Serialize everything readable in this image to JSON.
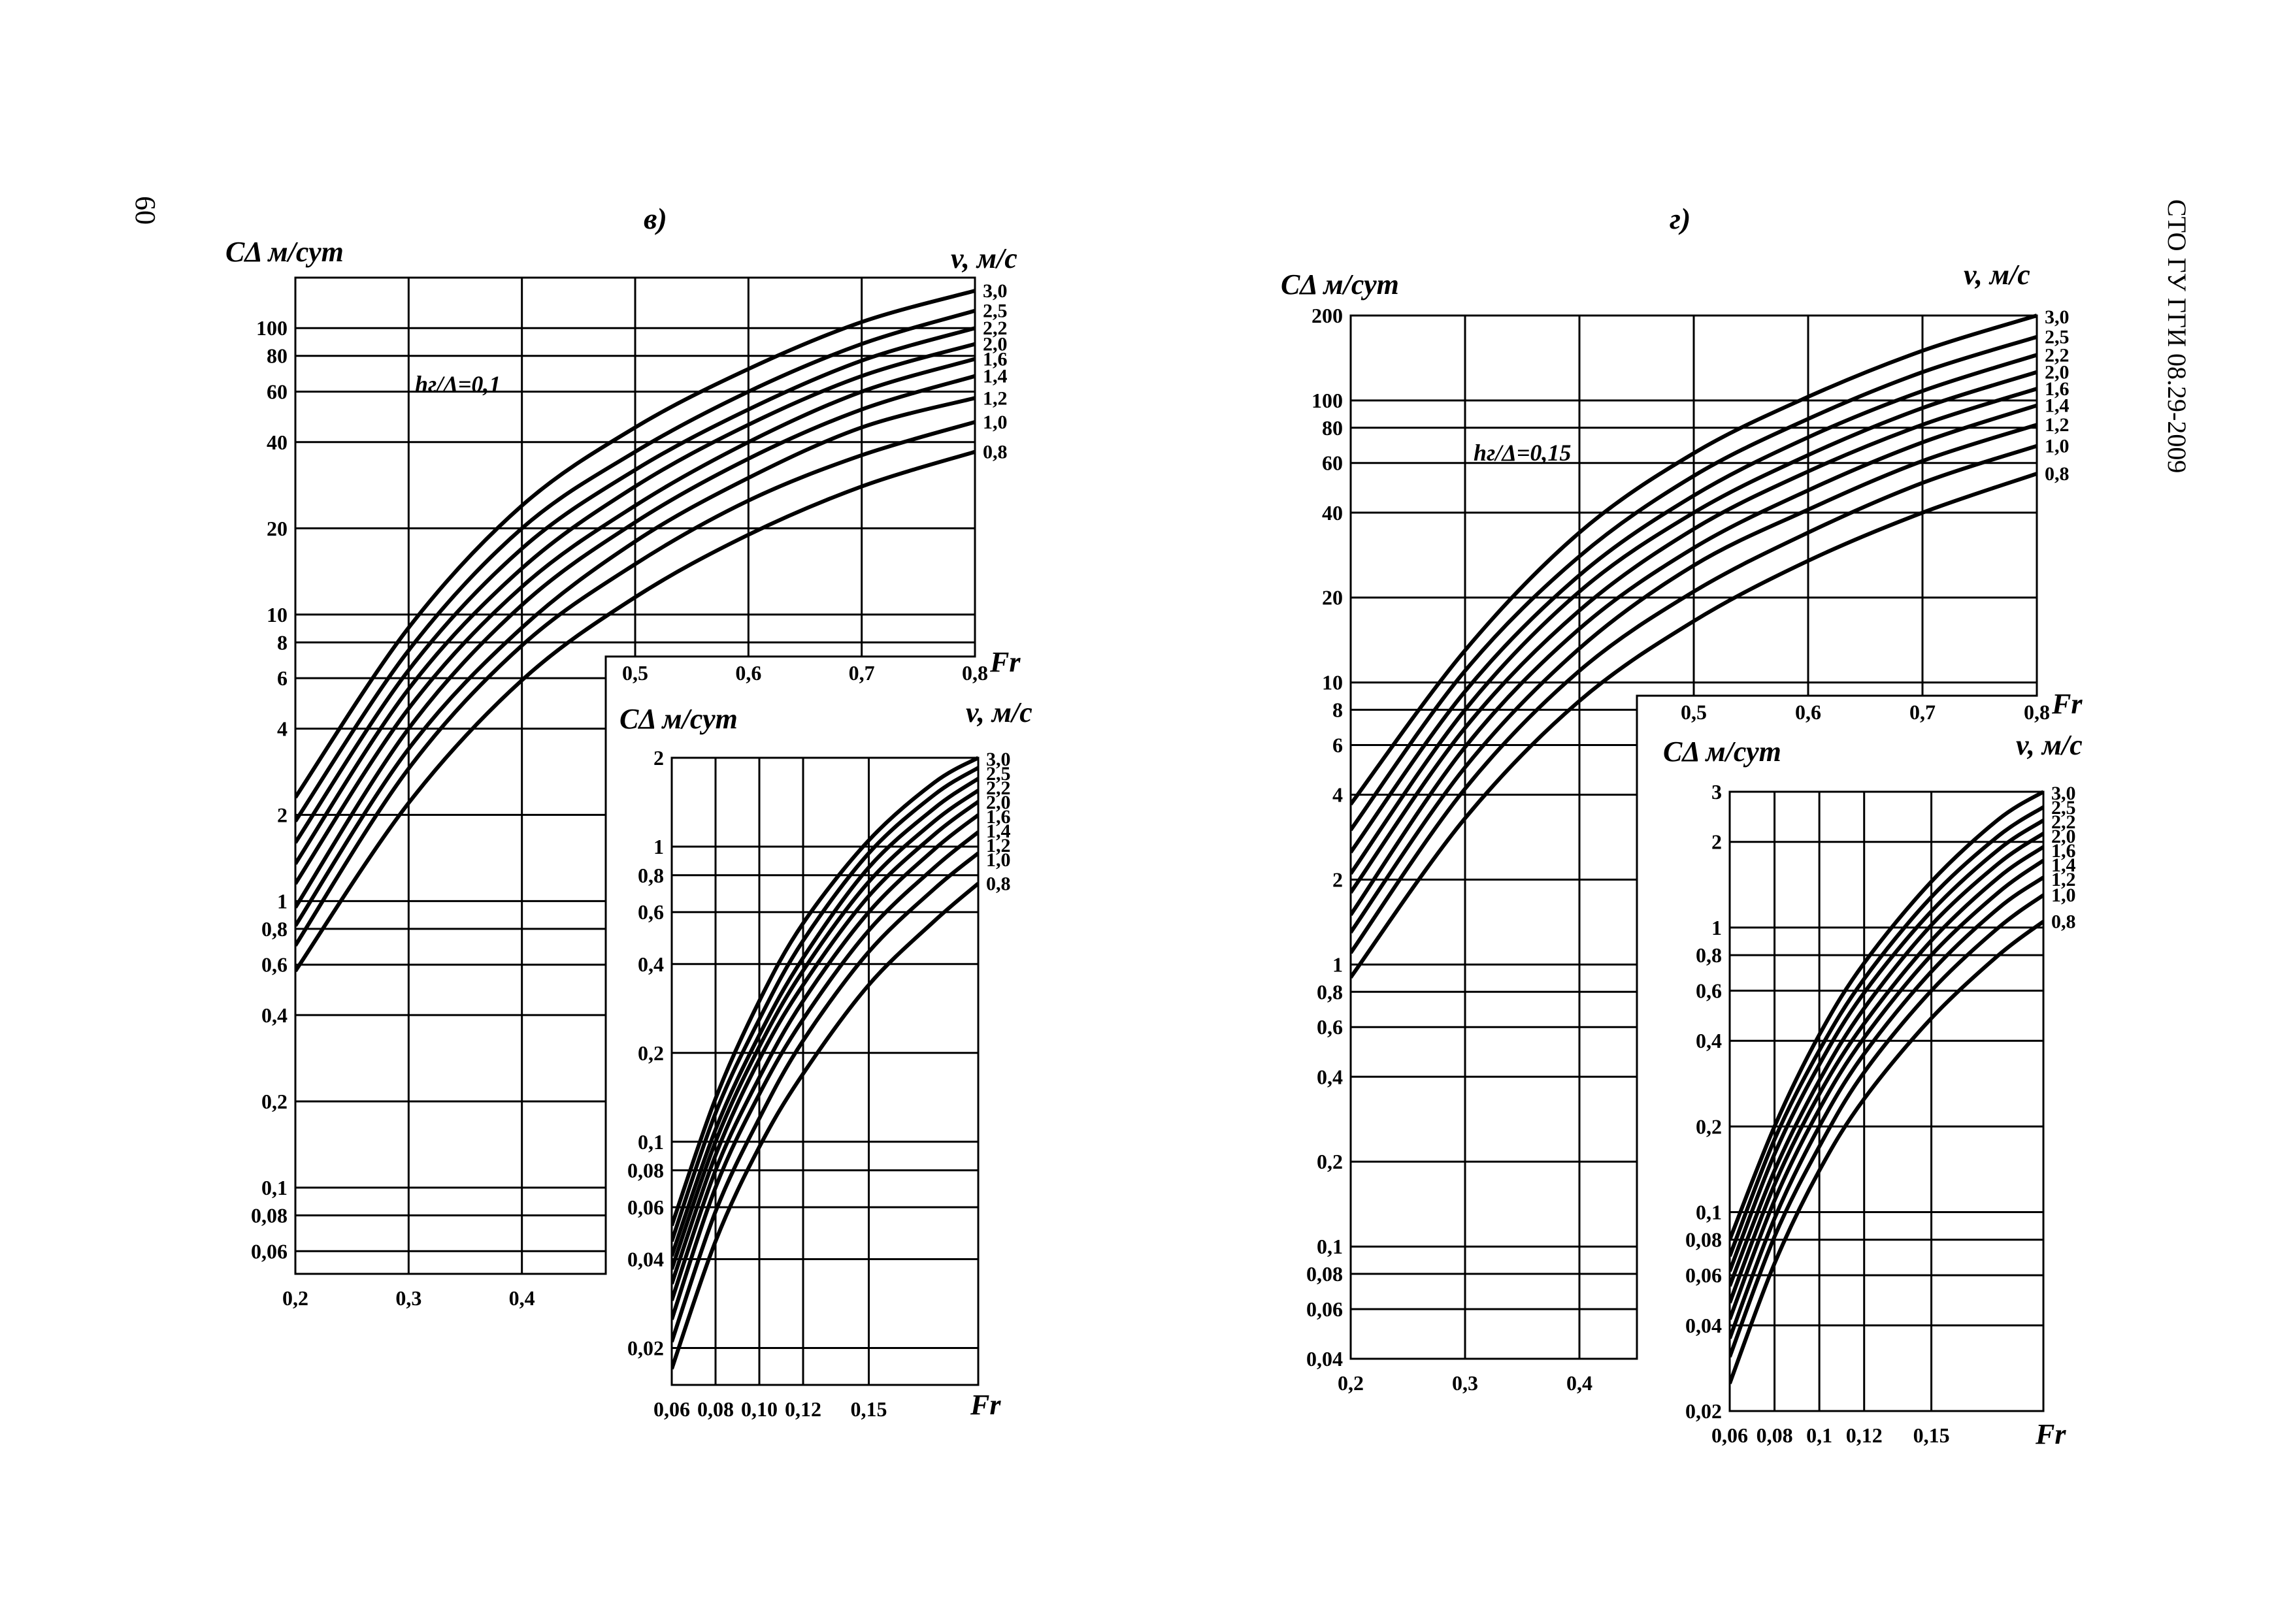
{
  "page": {
    "number": "60",
    "standard": "СТО ГУ ГГИ 08.29-2009"
  },
  "chart_data": [
    {
      "type": "line",
      "panel": "в)",
      "ylabel": "CΔ м/сут",
      "xlabel": "Fr",
      "series_label": "v, м/с",
      "annotation": "hг/Δ=0,1",
      "xlim": [
        0.2,
        0.8
      ],
      "ylim": [
        0.05,
        150
      ],
      "yscale": "log",
      "x_ticks": [
        "0,2",
        "0,3",
        "0,4",
        "0,5",
        "0,6",
        "0,7",
        "0,8"
      ],
      "y_ticks": [
        "0,06",
        "0,08",
        "0,1",
        "0,2",
        "0,4",
        "0,6",
        "0,8",
        "1",
        "2",
        "4",
        "6",
        "8",
        "10",
        "20",
        "40",
        "60",
        "80",
        "100"
      ],
      "x_values": [
        0.2,
        0.3,
        0.4,
        0.5,
        0.6,
        0.7,
        0.8
      ],
      "series": [
        {
          "name": "3,0",
          "values": [
            2.3,
            9.0,
            24,
            45,
            72,
            105,
            135
          ]
        },
        {
          "name": "2,5",
          "values": [
            1.9,
            7.5,
            20,
            37,
            60,
            88,
            115
          ]
        },
        {
          "name": "2,2",
          "values": [
            1.6,
            6.4,
            17,
            32,
            52,
            77,
            100
          ]
        },
        {
          "name": "2,0",
          "values": [
            1.35,
            5.5,
            14.5,
            28,
            46,
            68,
            88
          ]
        },
        {
          "name": "1,6",
          "values": [
            1.15,
            4.7,
            12.5,
            24,
            40,
            60,
            78
          ]
        },
        {
          "name": "1,4",
          "values": [
            0.95,
            4.0,
            10.8,
            21,
            35,
            52,
            68
          ]
        },
        {
          "name": "1,2",
          "values": [
            0.82,
            3.4,
            9.0,
            18,
            30,
            45,
            57
          ]
        },
        {
          "name": "1,0",
          "values": [
            0.7,
            2.9,
            7.8,
            15,
            25,
            36,
            47
          ]
        },
        {
          "name": "0,8",
          "values": [
            0.57,
            2.2,
            5.9,
            11.5,
            19,
            28,
            37
          ]
        }
      ]
    },
    {
      "type": "line",
      "panel": "в) inset",
      "ylabel": "CΔ м/сут",
      "xlabel": "Fr",
      "series_label": "v, м/с",
      "xlim": [
        0.06,
        0.2
      ],
      "ylim": [
        0.015,
        2
      ],
      "yscale": "log",
      "x_ticks": [
        "0,06",
        "0,08",
        "0,10",
        "0,12",
        "0,15"
      ],
      "y_ticks": [
        "0,02",
        "0,04",
        "0,06",
        "0,08",
        "0,1",
        "0,2",
        "0,4",
        "0,6",
        "0,8",
        "1",
        "2"
      ],
      "x_values": [
        0.06,
        0.08,
        0.1,
        0.12,
        0.15,
        0.18,
        0.2
      ],
      "series": [
        {
          "name": "3,0",
          "values": [
            0.052,
            0.14,
            0.3,
            0.55,
            1.05,
            1.65,
            2.0
          ]
        },
        {
          "name": "2,5",
          "values": [
            0.046,
            0.125,
            0.26,
            0.48,
            0.95,
            1.5,
            1.85
          ]
        },
        {
          "name": "2,2",
          "values": [
            0.041,
            0.11,
            0.23,
            0.42,
            0.85,
            1.35,
            1.7
          ]
        },
        {
          "name": "2,0",
          "values": [
            0.037,
            0.1,
            0.21,
            0.38,
            0.76,
            1.22,
            1.55
          ]
        },
        {
          "name": "1,6",
          "values": [
            0.033,
            0.09,
            0.19,
            0.34,
            0.68,
            1.1,
            1.42
          ]
        },
        {
          "name": "1,4",
          "values": [
            0.029,
            0.08,
            0.165,
            0.3,
            0.6,
            0.98,
            1.28
          ]
        },
        {
          "name": "1,2",
          "values": [
            0.025,
            0.07,
            0.145,
            0.26,
            0.52,
            0.85,
            1.12
          ]
        },
        {
          "name": "1,0",
          "values": [
            0.021,
            0.058,
            0.12,
            0.22,
            0.44,
            0.72,
            0.95
          ]
        },
        {
          "name": "0,8",
          "values": [
            0.017,
            0.046,
            0.096,
            0.17,
            0.34,
            0.56,
            0.75
          ]
        }
      ]
    },
    {
      "type": "line",
      "panel": "г)",
      "ylabel": "CΔ м/сут",
      "xlabel": "Fr",
      "series_label": "v, м/с",
      "annotation": "hг/Δ=0,15",
      "xlim": [
        0.2,
        0.8
      ],
      "ylim": [
        0.04,
        200
      ],
      "yscale": "log",
      "x_ticks": [
        "0,2",
        "0,3",
        "0,4",
        "0,5",
        "0,6",
        "0,7",
        "0,8"
      ],
      "y_ticks": [
        "0,04",
        "0,06",
        "0,08",
        "0,1",
        "0,2",
        "0,4",
        "0,6",
        "0,8",
        "1",
        "2",
        "4",
        "6",
        "8",
        "10",
        "20",
        "40",
        "60",
        "80",
        "100",
        "200"
      ],
      "x_values": [
        0.2,
        0.3,
        0.4,
        0.5,
        0.6,
        0.7,
        0.8
      ],
      "series": [
        {
          "name": "3,0",
          "values": [
            3.7,
            13,
            34,
            65,
            103,
            150,
            200
          ]
        },
        {
          "name": "2,5",
          "values": [
            3.0,
            11,
            28,
            54,
            86,
            126,
            168
          ]
        },
        {
          "name": "2,2",
          "values": [
            2.5,
            9.3,
            24,
            46,
            74,
            108,
            145
          ]
        },
        {
          "name": "2,0",
          "values": [
            2.1,
            8.0,
            21,
            40,
            64,
            94,
            126
          ]
        },
        {
          "name": "1,6",
          "values": [
            1.8,
            6.9,
            18,
            35,
            56,
            82,
            110
          ]
        },
        {
          "name": "1,4",
          "values": [
            1.5,
            5.9,
            15.5,
            30,
            48,
            71,
            96
          ]
        },
        {
          "name": "1,2",
          "values": [
            1.3,
            5.0,
            13.2,
            26,
            41,
            61,
            82
          ]
        },
        {
          "name": "1,0",
          "values": [
            1.1,
            4.2,
            11,
            21,
            34,
            51,
            69
          ]
        },
        {
          "name": "0,8",
          "values": [
            0.9,
            3.3,
            8.6,
            16.5,
            27,
            40,
            55
          ]
        }
      ]
    },
    {
      "type": "line",
      "panel": "г) inset",
      "ylabel": "CΔ м/сут",
      "xlabel": "Fr",
      "series_label": "v, м/с",
      "xlim": [
        0.06,
        0.2
      ],
      "ylim": [
        0.02,
        3
      ],
      "yscale": "log",
      "x_ticks": [
        "0,06",
        "0,08",
        "0,1",
        "0,12",
        "0,15"
      ],
      "y_ticks": [
        "0,02",
        "0,04",
        "0,06",
        "0,08",
        "0,1",
        "0,2",
        "0,4",
        "0,6",
        "0,8",
        "1",
        "2",
        "3"
      ],
      "x_values": [
        0.06,
        0.08,
        0.1,
        0.12,
        0.15,
        0.18,
        0.2
      ],
      "series": [
        {
          "name": "3,0",
          "values": [
            0.08,
            0.2,
            0.42,
            0.75,
            1.45,
            2.4,
            3.0
          ]
        },
        {
          "name": "2,5",
          "values": [
            0.07,
            0.18,
            0.37,
            0.66,
            1.28,
            2.1,
            2.65
          ]
        },
        {
          "name": "2,2",
          "values": [
            0.062,
            0.16,
            0.33,
            0.59,
            1.14,
            1.88,
            2.38
          ]
        },
        {
          "name": "2,0",
          "values": [
            0.055,
            0.14,
            0.29,
            0.52,
            1.02,
            1.68,
            2.14
          ]
        },
        {
          "name": "1,6",
          "values": [
            0.048,
            0.125,
            0.26,
            0.46,
            0.9,
            1.5,
            1.92
          ]
        },
        {
          "name": "1,4",
          "values": [
            0.042,
            0.11,
            0.23,
            0.41,
            0.8,
            1.33,
            1.72
          ]
        },
        {
          "name": "1,2",
          "values": [
            0.036,
            0.095,
            0.2,
            0.36,
            0.7,
            1.17,
            1.5
          ]
        },
        {
          "name": "1,0",
          "values": [
            0.031,
            0.082,
            0.17,
            0.31,
            0.6,
            1.0,
            1.3
          ]
        },
        {
          "name": "0,8",
          "values": [
            0.025,
            0.066,
            0.14,
            0.25,
            0.48,
            0.8,
            1.05
          ]
        }
      ]
    }
  ]
}
